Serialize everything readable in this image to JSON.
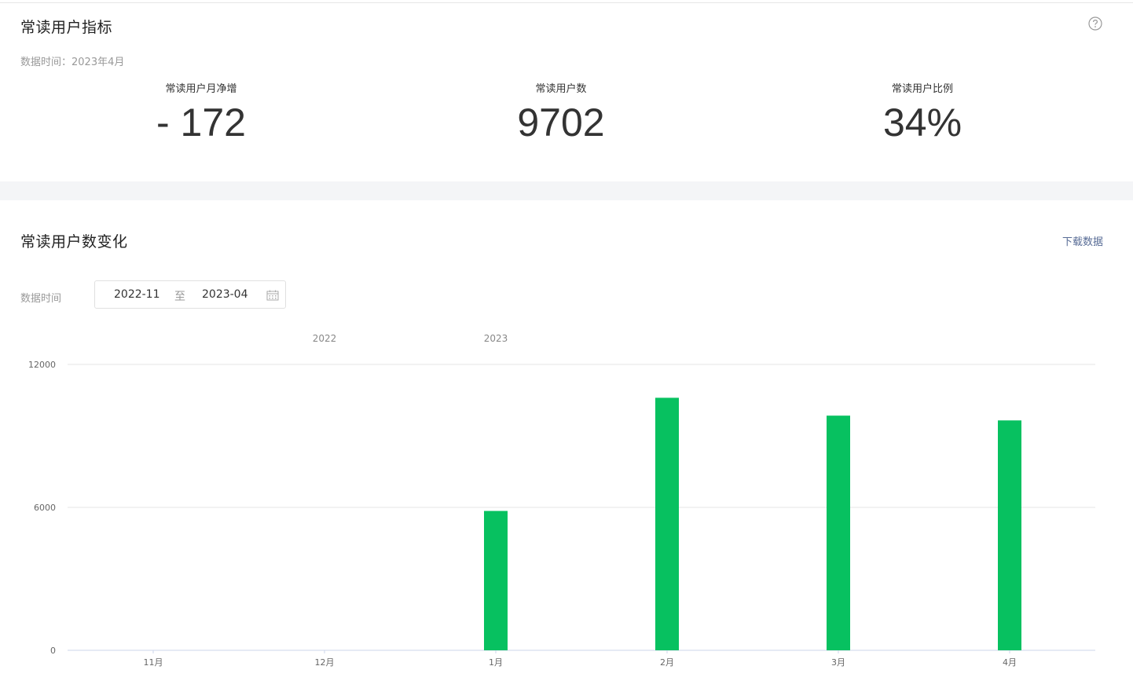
{
  "metrics_section": {
    "title": "常读用户指标",
    "data_time": "数据时间：2023年4月",
    "metrics": [
      {
        "label": "常读用户月净增",
        "value": "- 172"
      },
      {
        "label": "常读用户数",
        "value": "9702"
      },
      {
        "label": "常读用户比例",
        "value": "34%"
      }
    ],
    "help_icon": "question-circle-icon"
  },
  "trend_section": {
    "title": "常读用户数变化",
    "download_label": "下载数据",
    "data_time_label": "数据时间",
    "range": {
      "start": "2022-11",
      "separator": "至",
      "end": "2023-04"
    },
    "calendar_icon": "calendar-icon"
  },
  "chart_data": {
    "type": "bar",
    "categories": [
      "11月",
      "12月",
      "1月",
      "2月",
      "3月",
      "4月"
    ],
    "year_labels": [
      {
        "label": "2022",
        "category_index": 1
      },
      {
        "label": "2023",
        "category_index": 2
      }
    ],
    "values": [
      0,
      0,
      5850,
      10600,
      9850,
      9650
    ],
    "ylim": [
      0,
      12000
    ],
    "yticks": [
      "0",
      "6000",
      "12000"
    ],
    "color": "#07c160",
    "grid": true
  }
}
